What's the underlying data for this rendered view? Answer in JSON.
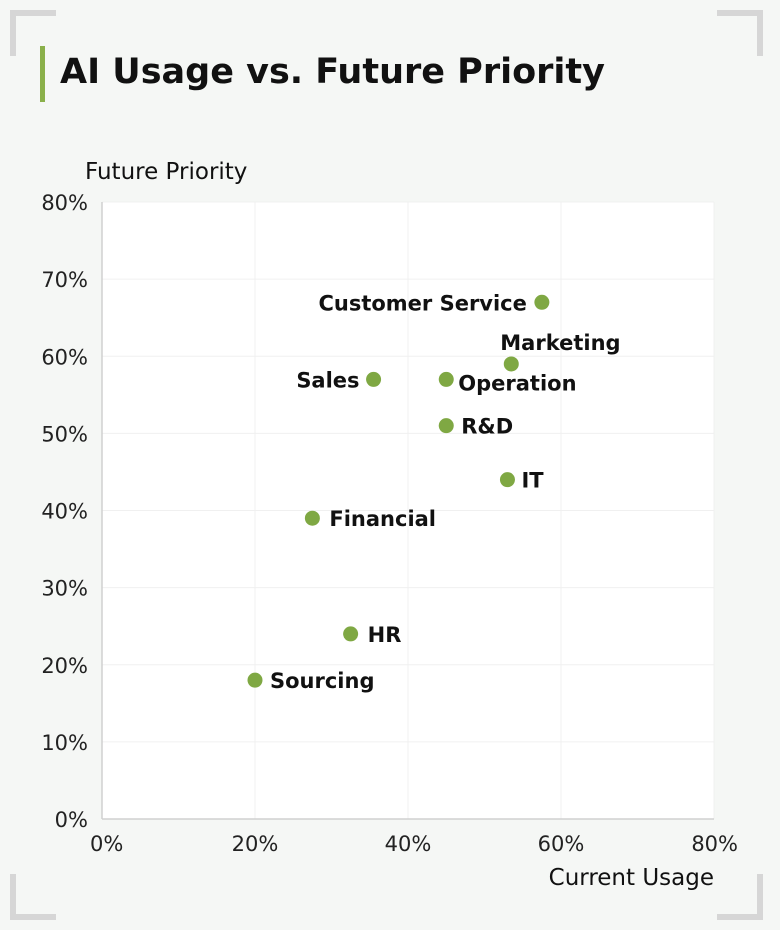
{
  "title": "AI Usage vs. Future Priority",
  "colors": {
    "accent": "#8ab04a",
    "point": "#7fa843",
    "plot_background": "#ffffff",
    "page_background": "#f5f7f5"
  },
  "chart_data": {
    "type": "scatter",
    "title": "AI Usage vs. Future Priority",
    "xlabel": "Current Usage",
    "ylabel": "Future Priority",
    "xlim": [
      0,
      80
    ],
    "ylim": [
      0,
      80
    ],
    "x_ticks": [
      "0%",
      "20%",
      "40%",
      "60%",
      "80%"
    ],
    "y_ticks": [
      "0%",
      "10%",
      "20%",
      "30%",
      "40%",
      "50%",
      "60%",
      "70%",
      "80%"
    ],
    "grid": true,
    "points": [
      {
        "label": "Customer Service",
        "x": 57.5,
        "y": 67
      },
      {
        "label": "Marketing",
        "x": 53.5,
        "y": 59
      },
      {
        "label": "Sales",
        "x": 35.5,
        "y": 57
      },
      {
        "label": "Operation",
        "x": 45,
        "y": 57
      },
      {
        "label": "R&D",
        "x": 45,
        "y": 51
      },
      {
        "label": "IT",
        "x": 53,
        "y": 44
      },
      {
        "label": "Financial",
        "x": 27.5,
        "y": 39
      },
      {
        "label": "HR",
        "x": 32.5,
        "y": 24
      },
      {
        "label": "Sourcing",
        "x": 20,
        "y": 18
      }
    ]
  }
}
